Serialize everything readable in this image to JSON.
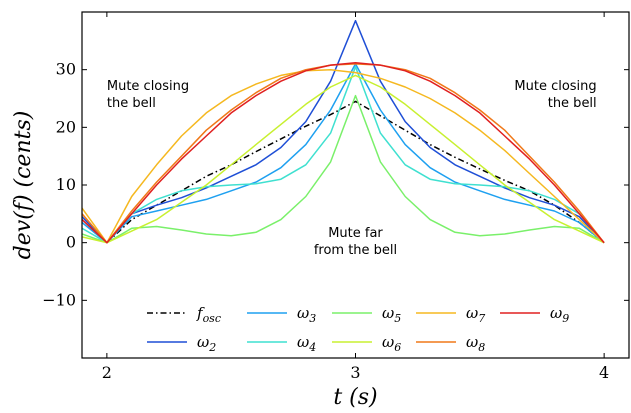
{
  "chart_data": {
    "type": "line",
    "xlabel": "t (s)",
    "ylabel": "dev(f) (cents)",
    "xlim": [
      1.9,
      4.1
    ],
    "ylim": [
      -20,
      40
    ],
    "xticks": [
      2,
      3,
      4
    ],
    "xtick_labels": [
      "2",
      "3",
      "4"
    ],
    "yticks": [
      -10,
      0,
      10,
      20,
      30
    ],
    "ytick_labels": [
      "−10",
      "0",
      "10",
      "20",
      "30"
    ],
    "grid": false,
    "legend_placement": "bottom",
    "annotations": [
      {
        "lines": [
          "Mute closing",
          "the bell"
        ],
        "x": 2.0,
        "y": 26.5,
        "align": "start"
      },
      {
        "lines": [
          "Mute closing",
          "the bell"
        ],
        "x": 3.97,
        "y": 26.5,
        "align": "end"
      },
      {
        "lines": [
          "Mute far",
          "from the bell"
        ],
        "x": 3.0,
        "y": 1.0,
        "align": "middle"
      }
    ],
    "series": [
      {
        "name": "f_osc",
        "legend_base": "f",
        "legend_sub": "osc",
        "color": "#000000",
        "dash": "dashdot",
        "x": [
          2.0,
          2.1,
          2.2,
          2.3,
          2.4,
          2.5,
          2.6,
          2.7,
          2.8,
          2.9,
          3.0,
          3.1,
          3.2,
          3.3,
          3.4,
          3.5,
          3.6,
          3.7,
          3.8,
          3.9,
          4.0
        ],
        "y": [
          0,
          4,
          6.5,
          9,
          11.5,
          13.5,
          15.8,
          18,
          20.2,
          22.2,
          24.5,
          22,
          19.5,
          17,
          14.8,
          12.8,
          10.8,
          9,
          6.5,
          3.5,
          0
        ]
      },
      {
        "name": "ω2",
        "legend_base": "ω",
        "legend_sub": "2",
        "color": "#1f4fd6",
        "x": [
          1.9,
          2.0,
          2.1,
          2.2,
          2.3,
          2.4,
          2.5,
          2.6,
          2.7,
          2.8,
          2.9,
          3.0,
          3.1,
          3.2,
          3.3,
          3.4,
          3.5,
          3.6,
          3.7,
          3.8,
          3.9,
          4.0
        ],
        "y": [
          4.5,
          0,
          5,
          6.5,
          7.8,
          9.5,
          11.5,
          13.5,
          16.5,
          21,
          28,
          38.5,
          28,
          21,
          16.5,
          13.5,
          11.5,
          9.5,
          7.8,
          6.5,
          4.5,
          0
        ]
      },
      {
        "name": "ω3",
        "legend_base": "ω",
        "legend_sub": "3",
        "color": "#1ea0f0",
        "x": [
          1.9,
          2.0,
          2.1,
          2.2,
          2.3,
          2.4,
          2.5,
          2.6,
          2.7,
          2.8,
          2.9,
          3.0,
          3.1,
          3.2,
          3.3,
          3.4,
          3.5,
          3.6,
          3.7,
          3.8,
          3.9,
          4.0
        ],
        "y": [
          3.5,
          0,
          4.5,
          5.5,
          6.5,
          7.5,
          9,
          10.5,
          13,
          17,
          23,
          31,
          23,
          17,
          13,
          10.5,
          9,
          7.5,
          6.5,
          5.5,
          3.5,
          0
        ]
      },
      {
        "name": "ω4",
        "legend_base": "ω",
        "legend_sub": "4",
        "color": "#3fe0d0",
        "x": [
          1.9,
          2.0,
          2.1,
          2.2,
          2.3,
          2.4,
          2.5,
          2.6,
          2.7,
          2.8,
          2.9,
          3.0,
          3.1,
          3.2,
          3.3,
          3.4,
          3.5,
          3.6,
          3.7,
          3.8,
          3.9,
          4.0
        ],
        "y": [
          2.5,
          0,
          5,
          7.5,
          9,
          9.7,
          10,
          10.2,
          11,
          13.5,
          19,
          30.5,
          19,
          13.5,
          11,
          10.2,
          10,
          9.7,
          9,
          7.5,
          5,
          0
        ]
      },
      {
        "name": "ω5",
        "legend_base": "ω",
        "legend_sub": "5",
        "color": "#7af06a",
        "x": [
          1.9,
          2.0,
          2.1,
          2.2,
          2.3,
          2.4,
          2.5,
          2.6,
          2.7,
          2.8,
          2.9,
          3.0,
          3.1,
          3.2,
          3.3,
          3.4,
          3.5,
          3.6,
          3.7,
          3.8,
          3.9,
          4.0
        ],
        "y": [
          1.5,
          0,
          2.5,
          2.8,
          2.2,
          1.5,
          1.2,
          1.8,
          4,
          8,
          14,
          25.5,
          14,
          8,
          4,
          1.8,
          1.2,
          1.5,
          2.2,
          2.8,
          2.5,
          0
        ]
      },
      {
        "name": "ω6",
        "legend_base": "ω",
        "legend_sub": "6",
        "color": "#c8f030",
        "x": [
          1.9,
          2.0,
          2.1,
          2.2,
          2.3,
          2.4,
          2.5,
          2.6,
          2.7,
          2.8,
          2.9,
          3.0,
          3.1,
          3.2,
          3.3,
          3.4,
          3.5,
          3.6,
          3.7,
          3.8,
          3.9,
          4.0
        ],
        "y": [
          1.0,
          0,
          2,
          4,
          7,
          10,
          13.5,
          17,
          20.5,
          24,
          27,
          29,
          27,
          24,
          20.5,
          17,
          13.5,
          10,
          7,
          4,
          2,
          0
        ]
      },
      {
        "name": "ω7",
        "legend_base": "ω",
        "legend_sub": "7",
        "color": "#f5b820",
        "x": [
          1.9,
          2.0,
          2.1,
          2.2,
          2.3,
          2.4,
          2.5,
          2.6,
          2.7,
          2.8,
          2.9,
          3.0,
          3.1,
          3.2,
          3.3,
          3.4,
          3.5,
          3.6,
          3.7,
          3.8,
          3.9,
          4.0
        ],
        "y": [
          6.0,
          0,
          8,
          13.5,
          18.5,
          22.5,
          25.5,
          27.5,
          29,
          29.8,
          30,
          29.5,
          28.5,
          27,
          25,
          22.5,
          19.5,
          16,
          12,
          8,
          4,
          0
        ]
      },
      {
        "name": "ω8",
        "legend_base": "ω",
        "legend_sub": "8",
        "color": "#f07818",
        "x": [
          1.9,
          2.0,
          2.1,
          2.2,
          2.3,
          2.4,
          2.5,
          2.6,
          2.7,
          2.8,
          2.9,
          3.0,
          3.1,
          3.2,
          3.3,
          3.4,
          3.5,
          3.6,
          3.7,
          3.8,
          3.9,
          4.0
        ],
        "y": [
          5.0,
          0,
          5.5,
          10.5,
          15,
          19.5,
          23,
          26,
          28.5,
          30,
          30.8,
          31,
          30.8,
          30,
          28.5,
          26,
          23,
          19.5,
          15,
          10.5,
          5.5,
          0
        ]
      },
      {
        "name": "ω9",
        "legend_base": "ω",
        "legend_sub": "9",
        "color": "#e02020",
        "x": [
          1.9,
          2.0,
          2.1,
          2.2,
          2.3,
          2.4,
          2.5,
          2.6,
          2.7,
          2.8,
          2.9,
          3.0,
          3.1,
          3.2,
          3.3,
          3.4,
          3.5,
          3.6,
          3.7,
          3.8,
          3.9,
          4.0
        ],
        "y": [
          4.0,
          0,
          5,
          10,
          14.5,
          18.5,
          22.5,
          25.5,
          28,
          29.8,
          30.8,
          31.2,
          30.8,
          29.8,
          28,
          25.5,
          22.5,
          18.5,
          14.5,
          10,
          5,
          0
        ]
      }
    ],
    "legend_rows": [
      [
        "f_osc",
        "ω3",
        "ω5",
        "ω7",
        "ω9"
      ],
      [
        "ω2",
        "ω4",
        "ω6",
        "ω8"
      ]
    ]
  }
}
